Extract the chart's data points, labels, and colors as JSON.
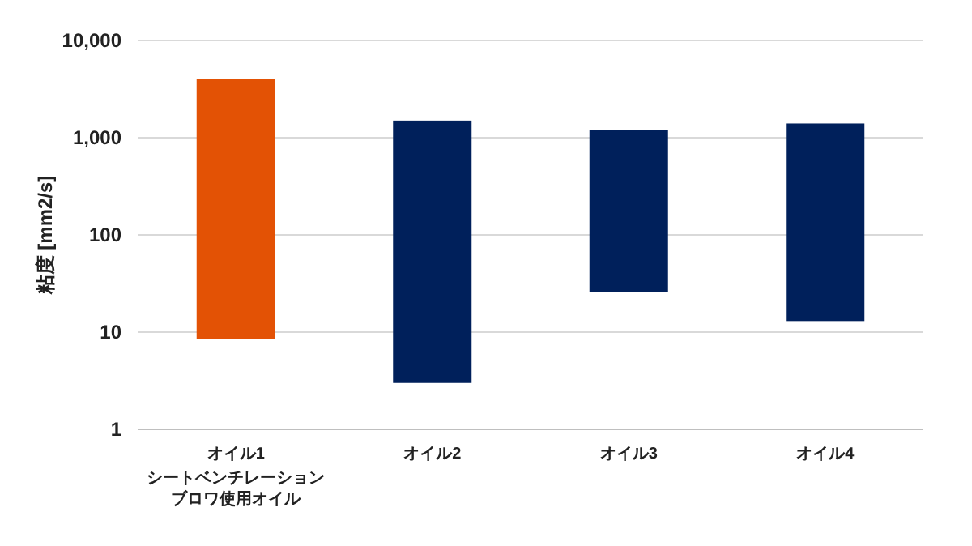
{
  "chart_data": {
    "type": "bar",
    "ylabel": "粘度 [mm2/s]",
    "categories": [
      "オイル1",
      "オイル2",
      "オイル3",
      "オイル4"
    ],
    "annotations": [
      "シートベンチレーションブロワ使用オイル"
    ],
    "base": [
      8.5,
      3,
      26,
      13
    ],
    "values": [
      3991.5,
      1497,
      1174,
      1387
    ],
    "colors": [
      "#e35205",
      "#00205b",
      "#00205b",
      "#00205b"
    ],
    "log": true,
    "ylim": [
      1,
      10000
    ],
    "yticks": [
      1,
      10,
      100,
      {
        "value": 1000,
        "label": "1,000"
      },
      {
        "value": 10000,
        "label": "10,000"
      }
    ],
    "grid": "y"
  }
}
